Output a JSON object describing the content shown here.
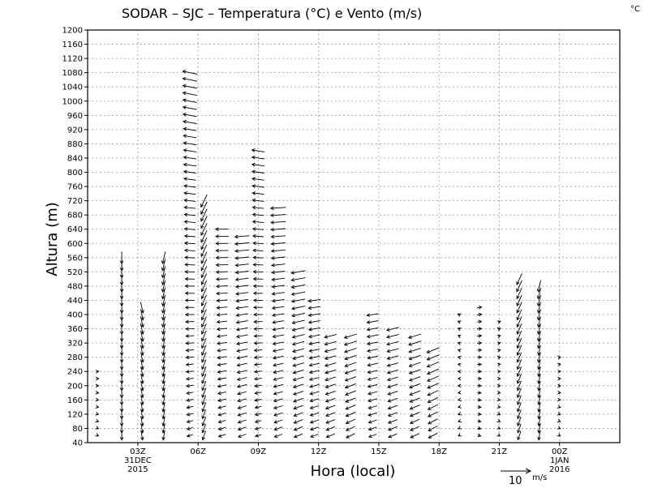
{
  "chart_data": {
    "type": "wind-barb-profile",
    "title": "SODAR – SJC – Temperatura (°C) e Vento (m/s)",
    "corner_unit": "°C",
    "xlabel": "Hora (local)",
    "ylabel": "Altura (m)",
    "ylim": [
      40,
      1200
    ],
    "y_ticks": [
      40,
      80,
      120,
      160,
      200,
      240,
      280,
      320,
      360,
      400,
      440,
      480,
      520,
      560,
      600,
      640,
      680,
      720,
      760,
      800,
      840,
      880,
      920,
      960,
      1000,
      1040,
      1080,
      1120,
      1160,
      1200
    ],
    "xlim_hours": [
      -2.5,
      24
    ],
    "x_ticks": [
      {
        "hour": 0,
        "label": "03Z",
        "sub": [
          "31DEC",
          "2015"
        ]
      },
      {
        "hour": 3,
        "label": "06Z",
        "sub": []
      },
      {
        "hour": 6,
        "label": "09Z",
        "sub": []
      },
      {
        "hour": 9,
        "label": "12Z",
        "sub": []
      },
      {
        "hour": 12,
        "label": "15Z",
        "sub": []
      },
      {
        "hour": 15,
        "label": "18Z",
        "sub": []
      },
      {
        "hour": 18,
        "label": "21Z",
        "sub": []
      },
      {
        "hour": 21,
        "label": "00Z",
        "sub": [
          "1JAN",
          "2016"
        ]
      }
    ],
    "reference_vector": {
      "value": "10",
      "unit": "m/s"
    },
    "profiles": [
      {
        "hour": -2.0,
        "top": 240,
        "dir": 10
      },
      {
        "hour": -0.8,
        "top": 560,
        "dir": 180
      },
      {
        "hour": 0.2,
        "top": 420,
        "dir": 170
      },
      {
        "hour": 1.3,
        "top": 560,
        "dir": 190
      },
      {
        "hour": 2.6,
        "top": 1080,
        "dir": 320
      },
      {
        "hour": 3.3,
        "top": 720,
        "dir": 200
      },
      {
        "hour": 4.2,
        "top": 640,
        "dir": 310
      },
      {
        "hour": 5.2,
        "top": 620,
        "dir": 300
      },
      {
        "hour": 6.0,
        "top": 860,
        "dir": 320
      },
      {
        "hour": 7.0,
        "top": 700,
        "dir": 300
      },
      {
        "hour": 8.0,
        "top": 520,
        "dir": 290
      },
      {
        "hour": 8.8,
        "top": 440,
        "dir": 300
      },
      {
        "hour": 9.6,
        "top": 340,
        "dir": 290
      },
      {
        "hour": 10.6,
        "top": 340,
        "dir": 280
      },
      {
        "hour": 11.7,
        "top": 400,
        "dir": 300
      },
      {
        "hour": 12.7,
        "top": 360,
        "dir": 290
      },
      {
        "hour": 13.8,
        "top": 350,
        "dir": 280
      },
      {
        "hour": 14.7,
        "top": 300,
        "dir": 270
      },
      {
        "hour": 16.0,
        "top": 400,
        "dir": 350
      },
      {
        "hour": 17.0,
        "top": 420,
        "dir": 20
      },
      {
        "hour": 18.0,
        "top": 380,
        "dir": 10
      },
      {
        "hour": 19.0,
        "top": 500,
        "dir": 200
      },
      {
        "hour": 20.0,
        "top": 480,
        "dir": 190
      },
      {
        "hour": 21.0,
        "top": 280,
        "dir": 10
      }
    ]
  }
}
